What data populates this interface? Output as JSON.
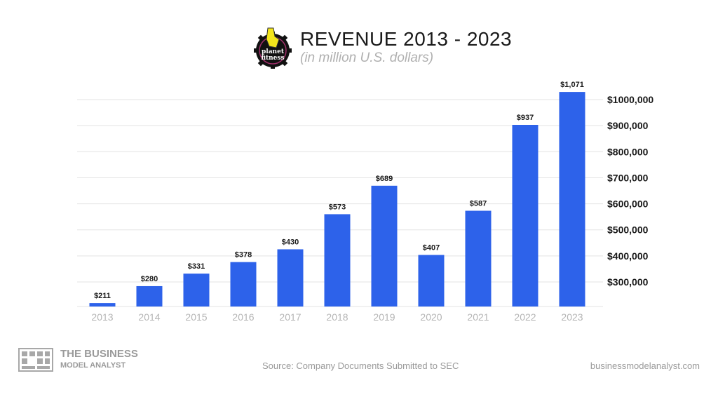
{
  "header": {
    "title": "REVENUE 2013 - 2023",
    "subtitle": "(in million U.S. dollars)",
    "logo_text": "planet fitness"
  },
  "chart_data": {
    "type": "bar",
    "title": "REVENUE 2013 - 2023",
    "subtitle": "(in million U.S. dollars)",
    "xlabel": "",
    "ylabel": "",
    "categories": [
      "2013",
      "2014",
      "2015",
      "2016",
      "2017",
      "2018",
      "2019",
      "2020",
      "2021",
      "2022",
      "2023"
    ],
    "values": [
      211,
      280,
      331,
      378,
      430,
      573,
      689,
      407,
      587,
      937,
      1071
    ],
    "data_labels": [
      "$211",
      "$280",
      "$331",
      "$378",
      "$430",
      "$573",
      "$689",
      "$407",
      "$587",
      "$937",
      "$1,071"
    ],
    "y_axis_position": "right",
    "y_ticks": [
      300000,
      400000,
      500000,
      600000,
      700000,
      800000,
      900000,
      1000000
    ],
    "y_tick_labels": [
      "$300,000",
      "$400,000",
      "$500,000",
      "$600,000",
      "$700,000",
      "$800,000",
      "$900,000",
      "$1000,000"
    ],
    "grid": true,
    "bar_color": "#2d62ea"
  },
  "footer": {
    "brand_line1": "THE BUSINESS",
    "brand_line2": "MODEL ANALYST",
    "source": "Source: Company Documents Submitted to SEC",
    "website": "businessmodelanalyst.com"
  }
}
